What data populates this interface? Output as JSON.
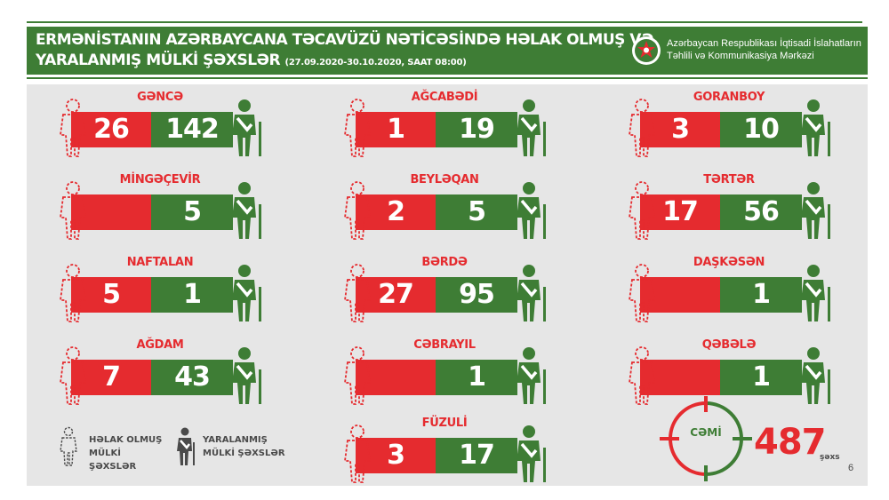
{
  "header": {
    "title_line1": "ERMƏNİSTANIN AZƏRBAYCANA TƏCAVÜZÜ NƏTİCƏSİNDƏ HƏLAK OLMUŞ VƏ",
    "title_line2": "YARALANMIŞ MÜLKİ ŞƏXSLƏR",
    "date_range": "(27.09.2020-30.10.2020, SAAT 08:00)",
    "org_line1": "Azərbaycan Respublikası İqtisadi İslahatların",
    "org_line2": "Təhlili və Kommunikasiya Mərkəzi"
  },
  "colors": {
    "dead": "#e52b2f",
    "wounded": "#3e7d35",
    "panel": "#e6e6e6"
  },
  "regions": [
    {
      "name": "GƏNCƏ",
      "dead": "26",
      "wounded": "142"
    },
    {
      "name": "MİNGƏÇEVİR",
      "dead": "",
      "wounded": "5"
    },
    {
      "name": "NAFTALAN",
      "dead": "5",
      "wounded": "1"
    },
    {
      "name": "AĞDAM",
      "dead": "7",
      "wounded": "43"
    },
    {
      "name": "AĞCABƏDİ",
      "dead": "1",
      "wounded": "19"
    },
    {
      "name": "BEYLƏQAN",
      "dead": "2",
      "wounded": "5"
    },
    {
      "name": "BƏRDƏ",
      "dead": "27",
      "wounded": "95"
    },
    {
      "name": "CƏBRAYIL",
      "dead": "",
      "wounded": "1"
    },
    {
      "name": "FÜZULİ",
      "dead": "3",
      "wounded": "17"
    },
    {
      "name": "GORANBOY",
      "dead": "3",
      "wounded": "10"
    },
    {
      "name": "TƏRTƏR",
      "dead": "17",
      "wounded": "56"
    },
    {
      "name": "DAŞKƏSƏN",
      "dead": "",
      "wounded": "1"
    },
    {
      "name": "QƏBƏLƏ",
      "dead": "",
      "wounded": "1"
    }
  ],
  "legend": {
    "dead_line1": "HƏLAK OLMUŞ",
    "dead_line2": "MÜLKİ ŞƏXSLƏR",
    "wounded_line1": "YARALANMIŞ",
    "wounded_line2": "MÜLKİ ŞƏXSLƏR",
    "dead_icon": "dead-person-icon",
    "wounded_icon": "wounded-person-icon"
  },
  "total": {
    "label": "CƏMİ",
    "value": "487",
    "unit": "şəxs"
  },
  "page_number": "6"
}
